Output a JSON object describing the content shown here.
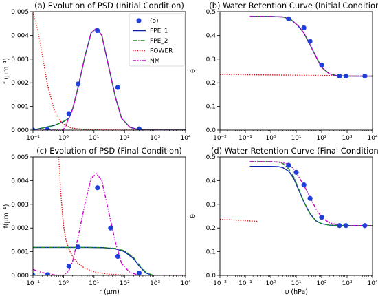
{
  "legend": [
    {
      "label": "(o)",
      "color": "#1f3fd6",
      "style": "marker"
    },
    {
      "label": "FPE_1",
      "color": "#0a1fb0",
      "style": "solid"
    },
    {
      "label": "FPE_2",
      "color": "#1a8a1a",
      "style": "dashdot"
    },
    {
      "label": "POWER",
      "color": "#e01010",
      "style": "dotted"
    },
    {
      "label": "NM",
      "color": "#cc00cc",
      "style": "dashdotdot"
    }
  ],
  "chart_data": [
    {
      "id": "a",
      "type": "line",
      "title": "(a) Evolution of PSD (Initial Condition)",
      "xlabel": "",
      "ylabel": "f (μm⁻¹)",
      "xscale": "log",
      "xlim": [
        0.1,
        10000
      ],
      "ylim": [
        0,
        0.005
      ],
      "xticks": [
        "10⁻¹",
        "10⁰",
        "10¹",
        "10²",
        "10³",
        "10⁴"
      ],
      "yticks": [
        "0.000",
        "0.001",
        "0.002",
        "0.003",
        "0.004",
        "0.005"
      ],
      "legend_position": "top-right",
      "series": [
        {
          "name": "(o)",
          "kind": "points",
          "x": [
            0.1,
            0.3,
            1.5,
            3,
            13,
            60,
            300
          ],
          "y": [
            0.0,
            2e-05,
            0.0007,
            0.00195,
            0.0042,
            0.0018,
            5e-05
          ]
        },
        {
          "name": "FPE_1",
          "kind": "line",
          "x": [
            0.1,
            0.5,
            1.0,
            1.5,
            2,
            3,
            5,
            8,
            12,
            18,
            30,
            50,
            80,
            150,
            300,
            600,
            1000,
            10000
          ],
          "y": [
            0.0,
            0.0002,
            0.00036,
            0.0005,
            0.0009,
            0.0018,
            0.0031,
            0.0041,
            0.0043,
            0.004,
            0.0027,
            0.0014,
            0.0005,
            0.00012,
            1e-05,
            0.0,
            0.0,
            0.0
          ]
        },
        {
          "name": "FPE_2",
          "kind": "line",
          "x": [
            0.1,
            0.5,
            1.0,
            1.5,
            2,
            3,
            5,
            8,
            12,
            18,
            30,
            50,
            80,
            150,
            300,
            600,
            1000,
            10000
          ],
          "y": [
            0.0,
            0.0002,
            0.00036,
            0.0005,
            0.0009,
            0.0018,
            0.0031,
            0.0041,
            0.0043,
            0.004,
            0.0027,
            0.0014,
            0.0005,
            0.00012,
            1e-05,
            0.0,
            0.0,
            0.0
          ]
        },
        {
          "name": "POWER",
          "kind": "line",
          "x": [
            0.1,
            0.15,
            0.2,
            0.3,
            0.5,
            0.7,
            1,
            1.5,
            2,
            3,
            5,
            10,
            30,
            100,
            1000
          ],
          "y": [
            0.005,
            0.0041,
            0.0032,
            0.0019,
            0.00085,
            0.00045,
            0.00025,
            0.00013,
            8e-05,
            5e-05,
            3e-05,
            2e-05,
            1e-05,
            0.0,
            0.0
          ]
        },
        {
          "name": "NM",
          "kind": "line",
          "x": [
            0.1,
            0.5,
            1.0,
            1.5,
            2,
            3,
            5,
            8,
            12,
            18,
            30,
            50,
            80,
            150,
            300,
            600,
            1000,
            10000
          ],
          "y": [
            0.0,
            0.0,
            2e-05,
            0.0005,
            0.0009,
            0.0018,
            0.0031,
            0.0041,
            0.0043,
            0.004,
            0.0027,
            0.0014,
            0.0005,
            0.00012,
            1e-05,
            0.0,
            0.0,
            0.0
          ]
        }
      ]
    },
    {
      "id": "b",
      "type": "line",
      "title": "(b) Water Retention Curve (Initial Condition)",
      "xlabel": "",
      "ylabel": "θ",
      "xscale": "log",
      "xlim": [
        0.01,
        10000
      ],
      "ylim": [
        0,
        0.5
      ],
      "xticks": [
        "10⁻²",
        "10⁻¹",
        "10⁰",
        "10¹",
        "10²",
        "10³",
        "10⁴"
      ],
      "yticks": [
        "0.0",
        "0.1",
        "0.2",
        "0.3",
        "0.4",
        "0.5"
      ],
      "series": [
        {
          "name": "(o)",
          "kind": "points",
          "x": [
            5,
            20,
            35,
            100,
            500,
            900,
            5000
          ],
          "y": [
            0.47,
            0.432,
            0.375,
            0.275,
            0.228,
            0.228,
            0.228
          ]
        },
        {
          "name": "FPE_1",
          "kind": "line",
          "x": [
            0.15,
            1,
            3,
            6,
            12,
            20,
            35,
            60,
            100,
            200,
            400,
            1000,
            10000
          ],
          "y": [
            0.48,
            0.48,
            0.478,
            0.468,
            0.44,
            0.41,
            0.36,
            0.31,
            0.265,
            0.238,
            0.23,
            0.228,
            0.228
          ]
        },
        {
          "name": "FPE_2",
          "kind": "line",
          "x": [
            0.15,
            1,
            3,
            6,
            12,
            20,
            35,
            60,
            100,
            200,
            400,
            1000,
            10000
          ],
          "y": [
            0.48,
            0.48,
            0.478,
            0.468,
            0.44,
            0.41,
            0.36,
            0.31,
            0.265,
            0.238,
            0.23,
            0.228,
            0.228
          ]
        },
        {
          "name": "POWER",
          "kind": "line",
          "x": [
            0.01,
            0.1,
            1,
            10,
            100,
            1000,
            10000
          ],
          "y": [
            0.235,
            0.234,
            0.233,
            0.232,
            0.231,
            0.229,
            0.228
          ]
        },
        {
          "name": "NM",
          "kind": "line",
          "x": [
            0.15,
            1,
            3,
            6,
            12,
            20,
            35,
            60,
            100,
            200,
            400,
            1000,
            10000
          ],
          "y": [
            0.48,
            0.48,
            0.478,
            0.468,
            0.44,
            0.41,
            0.36,
            0.31,
            0.265,
            0.238,
            0.23,
            0.228,
            0.228
          ]
        }
      ]
    },
    {
      "id": "c",
      "type": "line",
      "title": "(c) Evolution of PSD (Final Condition)",
      "xlabel": "r (μm)",
      "ylabel": "f(μm⁻¹)",
      "xscale": "log",
      "xlim": [
        0.1,
        10000
      ],
      "ylim": [
        0,
        0.005
      ],
      "xticks": [
        "10⁻¹",
        "10⁰",
        "10¹",
        "10²",
        "10³",
        "10⁴"
      ],
      "yticks": [
        "0.000",
        "0.001",
        "0.002",
        "0.003",
        "0.004",
        "0.005"
      ],
      "series": [
        {
          "name": "(o)",
          "kind": "points",
          "x": [
            0.1,
            0.3,
            1.5,
            3,
            13,
            35,
            60,
            300
          ],
          "y": [
            0.0,
            3e-05,
            0.00038,
            0.0012,
            0.0037,
            0.002,
            0.0008,
            0.0001
          ]
        },
        {
          "name": "FPE_1",
          "kind": "line",
          "x": [
            0.1,
            1,
            5,
            20,
            50,
            100,
            200,
            300,
            500,
            800,
            1000,
            10000
          ],
          "y": [
            0.00118,
            0.00118,
            0.00118,
            0.00117,
            0.00112,
            0.001,
            0.0007,
            0.0004,
            0.0001,
            1e-05,
            0.0,
            0.0
          ]
        },
        {
          "name": "FPE_2",
          "kind": "line",
          "x": [
            0.1,
            1,
            5,
            20,
            50,
            100,
            200,
            300,
            500,
            800,
            1000,
            10000
          ],
          "y": [
            0.00118,
            0.00118,
            0.00118,
            0.00117,
            0.00114,
            0.00104,
            0.00075,
            0.00045,
            0.00013,
            2e-05,
            0.0,
            0.0
          ]
        },
        {
          "name": "POWER",
          "kind": "line",
          "x": [
            0.7,
            0.8,
            1,
            1.2,
            1.5,
            2,
            3,
            5,
            10,
            30,
            100,
            1000
          ],
          "y": [
            0.005,
            0.0036,
            0.0021,
            0.0015,
            0.0011,
            0.0008,
            0.0005,
            0.0003,
            0.00015,
            5e-05,
            1e-05,
            0.0
          ]
        },
        {
          "name": "NM",
          "kind": "line",
          "x": [
            0.1,
            0.2,
            0.5,
            1,
            1.5,
            2,
            3,
            5,
            8,
            12,
            18,
            30,
            50,
            80,
            150,
            300,
            600,
            1000,
            10000
          ],
          "y": [
            0.00025,
            0.00012,
            2e-05,
            0.0,
            0.0002,
            0.0006,
            0.0016,
            0.003,
            0.0041,
            0.0043,
            0.004,
            0.0027,
            0.0014,
            0.0005,
            0.00012,
            1e-05,
            0.0,
            0.0,
            0.0
          ]
        }
      ]
    },
    {
      "id": "d",
      "type": "line",
      "title": "(d) Water Retention Curve (Final Condition)",
      "xlabel": "ψ (hPa)",
      "ylabel": "θ",
      "xscale": "log",
      "xlim": [
        0.01,
        10000
      ],
      "ylim": [
        0,
        0.5
      ],
      "xticks": [
        "10⁻²",
        "10⁻¹",
        "10⁰",
        "10¹",
        "10²",
        "10³",
        "10⁴"
      ],
      "yticks": [
        "0.0",
        "0.1",
        "0.2",
        "0.3",
        "0.4",
        "0.5"
      ],
      "series": [
        {
          "name": "(o)",
          "kind": "points",
          "x": [
            5,
            10,
            20,
            35,
            100,
            500,
            900,
            5000
          ],
          "y": [
            0.465,
            0.435,
            0.382,
            0.325,
            0.245,
            0.21,
            0.21,
            0.21
          ]
        },
        {
          "name": "FPE_1",
          "kind": "line",
          "x": [
            0.15,
            1,
            2,
            3,
            5,
            8,
            12,
            20,
            35,
            60,
            100,
            200,
            500,
            1000,
            10000
          ],
          "y": [
            0.46,
            0.46,
            0.459,
            0.455,
            0.44,
            0.41,
            0.365,
            0.31,
            0.26,
            0.23,
            0.218,
            0.212,
            0.21,
            0.21,
            0.21
          ]
        },
        {
          "name": "FPE_2",
          "kind": "line",
          "x": [
            0.15,
            1,
            2,
            3,
            5,
            8,
            12,
            20,
            35,
            60,
            100,
            200,
            500,
            1000,
            10000
          ],
          "y": [
            0.48,
            0.48,
            0.478,
            0.472,
            0.45,
            0.415,
            0.37,
            0.31,
            0.26,
            0.23,
            0.218,
            0.212,
            0.21,
            0.21,
            0.21
          ]
        },
        {
          "name": "POWER",
          "kind": "line",
          "x": [
            0.01,
            0.05,
            0.1,
            0.3
          ],
          "y": [
            0.237,
            0.233,
            0.231,
            0.228
          ]
        },
        {
          "name": "NM",
          "kind": "line",
          "x": [
            0.15,
            1,
            2,
            3,
            5,
            8,
            12,
            20,
            35,
            60,
            100,
            200,
            500,
            1000,
            10000
          ],
          "y": [
            0.48,
            0.48,
            0.479,
            0.476,
            0.468,
            0.45,
            0.42,
            0.38,
            0.33,
            0.28,
            0.245,
            0.222,
            0.212,
            0.21,
            0.21
          ]
        }
      ]
    }
  ]
}
